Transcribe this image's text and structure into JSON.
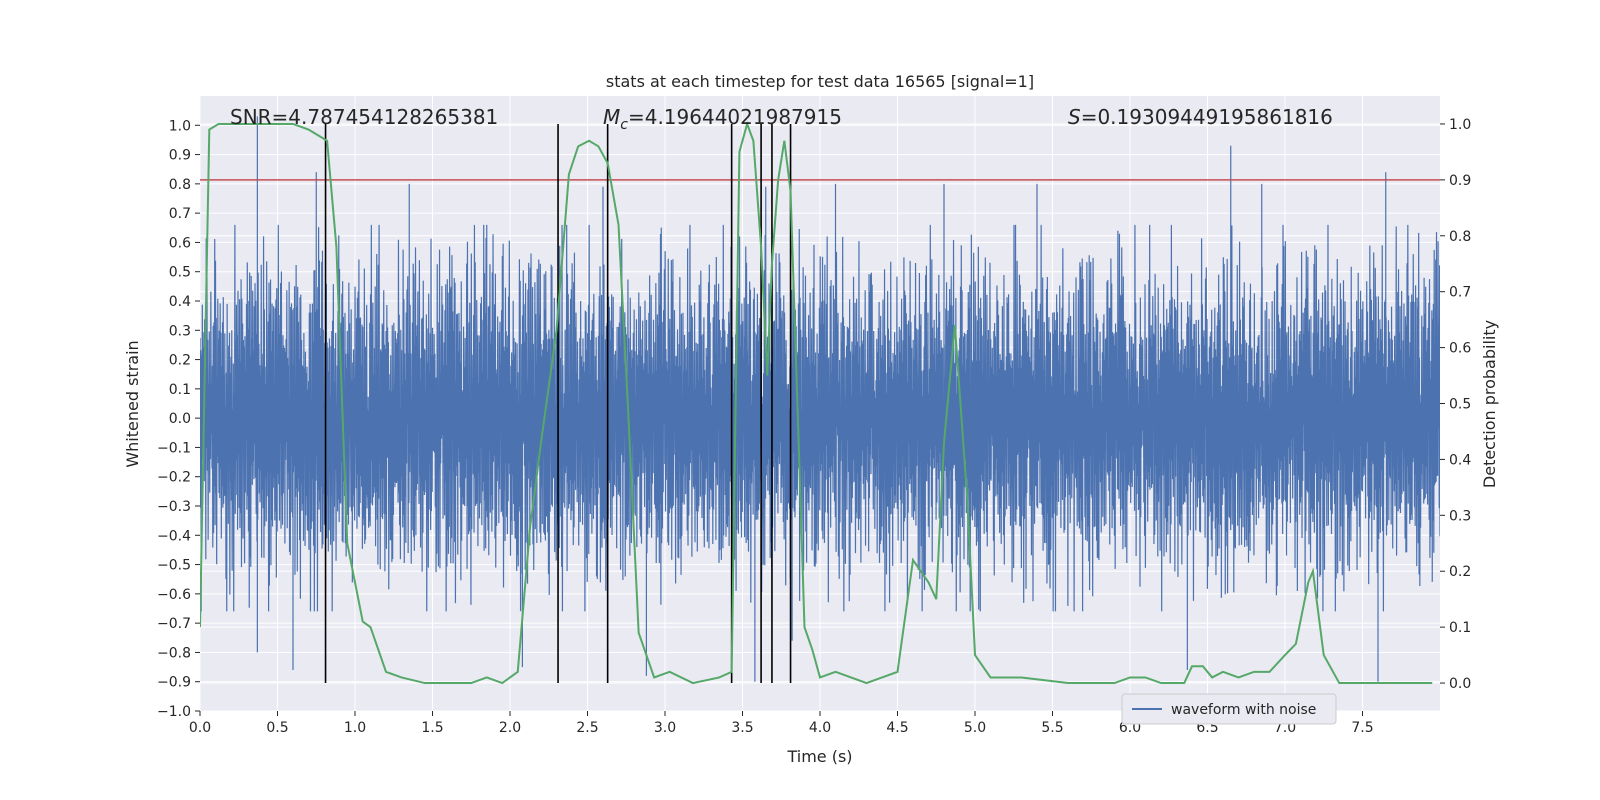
{
  "chart_data": {
    "type": "line",
    "title": "stats at each timestep for test data 16565 [signal=1]",
    "xlabel": "Time (s)",
    "ylabel": "Whitened strain",
    "y2label": "Detection probability",
    "xlim": [
      0.0,
      8.0
    ],
    "ylim": [
      -1.0,
      1.1
    ],
    "y2lim": [
      -0.05,
      1.05
    ],
    "xticks": [
      "0.0",
      "0.5",
      "1.0",
      "1.5",
      "2.0",
      "2.5",
      "3.0",
      "3.5",
      "4.0",
      "4.5",
      "5.0",
      "5.5",
      "6.0",
      "6.5",
      "7.0",
      "7.5"
    ],
    "yticks": [
      "−1.0",
      "−0.9",
      "−0.8",
      "−0.7",
      "−0.6",
      "−0.5",
      "−0.4",
      "−0.3",
      "−0.2",
      "−0.1",
      "0.0",
      "0.1",
      "0.2",
      "0.3",
      "0.4",
      "0.5",
      "0.6",
      "0.7",
      "0.8",
      "0.9",
      "1.0"
    ],
    "y2ticks": [
      "0.0",
      "0.1",
      "0.2",
      "0.3",
      "0.4",
      "0.5",
      "0.6",
      "0.7",
      "0.8",
      "0.9",
      "1.0"
    ],
    "annotations": {
      "snr": "SNR=4.787454128265381",
      "mc": "=4.19644021987915",
      "mc_symbol": "M",
      "mc_sub": "c",
      "s": "=0.19309449195861816",
      "s_symbol": "S"
    },
    "legend": {
      "placement": "bottom-center",
      "entries": [
        "waveform with noise"
      ]
    },
    "threshold_probability": 0.9,
    "event_markers_time": [
      0.81,
      2.31,
      2.63,
      3.43,
      3.62,
      3.69,
      3.81
    ],
    "waveform_envelope": {
      "typical_amplitude": 0.42,
      "spikes": [
        {
          "t": 0.37,
          "v": 1.03
        },
        {
          "t": 0.37,
          "v": -0.8
        },
        {
          "t": 0.6,
          "v": -0.86
        },
        {
          "t": 0.75,
          "v": 0.84
        },
        {
          "t": 1.35,
          "v": 0.8
        },
        {
          "t": 1.85,
          "v": 0.66
        },
        {
          "t": 2.08,
          "v": -0.85
        },
        {
          "t": 2.6,
          "v": 0.79
        },
        {
          "t": 2.88,
          "v": -0.88
        },
        {
          "t": 3.58,
          "v": -0.9
        },
        {
          "t": 3.65,
          "v": 0.79
        },
        {
          "t": 3.82,
          "v": -0.76
        },
        {
          "t": 4.1,
          "v": 0.8
        },
        {
          "t": 4.8,
          "v": 0.8
        },
        {
          "t": 5.4,
          "v": 0.8
        },
        {
          "t": 6.37,
          "v": -0.86
        },
        {
          "t": 6.65,
          "v": 0.93
        },
        {
          "t": 6.85,
          "v": 0.8
        },
        {
          "t": 7.6,
          "v": -0.9
        },
        {
          "t": 7.65,
          "v": 0.84
        }
      ]
    },
    "series": [
      {
        "name": "waveform with noise",
        "color": "#4c72b0"
      },
      {
        "color": "#55a868",
        "t": [
          0.0,
          0.06,
          0.12,
          0.2,
          0.3,
          0.45,
          0.6,
          0.7,
          0.82,
          0.88,
          0.95,
          1.0,
          1.05,
          1.1,
          1.2,
          1.3,
          1.45,
          1.6,
          1.75,
          1.85,
          1.95,
          2.05,
          2.13,
          2.2,
          2.3,
          2.38,
          2.44,
          2.51,
          2.57,
          2.63,
          2.7,
          2.76,
          2.83,
          2.93,
          3.03,
          3.18,
          3.35,
          3.43,
          3.48,
          3.53,
          3.57,
          3.62,
          3.66,
          3.69,
          3.73,
          3.77,
          3.81,
          3.86,
          3.9,
          3.95,
          4.0,
          4.1,
          4.2,
          4.3,
          4.5,
          4.6,
          4.7,
          4.75,
          4.8,
          4.87,
          4.95,
          5.0,
          5.1,
          5.3,
          5.6,
          5.9,
          6.0,
          6.1,
          6.2,
          6.35,
          6.4,
          6.47,
          6.53,
          6.6,
          6.7,
          6.8,
          6.9,
          7.0,
          7.07,
          7.15,
          7.18,
          7.25,
          7.35,
          7.5,
          7.6,
          7.75,
          7.88,
          7.95
        ],
        "probability": [
          0.1,
          0.99,
          1.0,
          1.0,
          1.0,
          1.0,
          1.0,
          0.99,
          0.97,
          0.78,
          0.25,
          0.18,
          0.11,
          0.1,
          0.02,
          0.01,
          0.0,
          0.0,
          0.0,
          0.01,
          0.0,
          0.02,
          0.28,
          0.43,
          0.63,
          0.91,
          0.96,
          0.97,
          0.96,
          0.93,
          0.82,
          0.5,
          0.09,
          0.01,
          0.02,
          0.0,
          0.01,
          0.02,
          0.95,
          1.0,
          0.97,
          0.78,
          0.55,
          0.75,
          0.9,
          0.97,
          0.88,
          0.45,
          0.1,
          0.06,
          0.01,
          0.02,
          0.01,
          0.0,
          0.02,
          0.22,
          0.18,
          0.15,
          0.43,
          0.64,
          0.33,
          0.05,
          0.01,
          0.01,
          0.0,
          0.0,
          0.01,
          0.01,
          0.0,
          0.0,
          0.03,
          0.03,
          0.01,
          0.02,
          0.01,
          0.02,
          0.02,
          0.05,
          0.07,
          0.18,
          0.2,
          0.05,
          0.0,
          0.0,
          0.0,
          0.0,
          0.0,
          0.0
        ]
      }
    ]
  }
}
